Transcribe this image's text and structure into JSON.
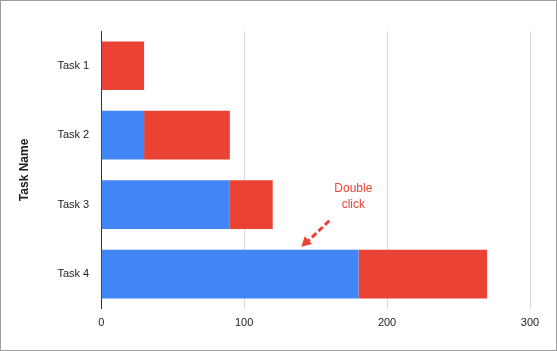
{
  "chart_data": {
    "type": "bar",
    "orientation": "horizontal",
    "stacked": true,
    "grid": true,
    "y_label": "Task Name",
    "categories": [
      "Task 1",
      "Task 2",
      "Task 3",
      "Task 4"
    ],
    "series": [
      {
        "color": "#4285f4",
        "values": [
          0,
          30,
          90,
          180
        ]
      },
      {
        "color": "#ea4335",
        "values": [
          30,
          60,
          30,
          90
        ]
      }
    ],
    "xlim": [
      0,
      300
    ],
    "xticks": [
      0,
      100,
      200,
      300
    ],
    "annotations": [
      {
        "text": "Double click",
        "x": 140,
        "category": "Task 4",
        "color": "#ea4335"
      }
    ]
  }
}
